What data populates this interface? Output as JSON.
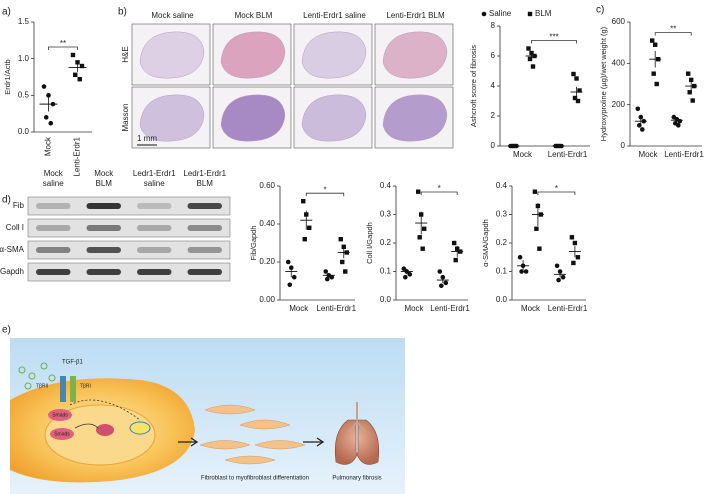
{
  "panel_labels": {
    "a": "a)",
    "b": "b)",
    "c": "c)",
    "d": "d)",
    "e": "e)"
  },
  "histology": {
    "columns": [
      "Mock saline",
      "Mock BLM",
      "Lenti-Erdr1 saline",
      "Lenti-Erdr1 BLM"
    ],
    "rows": [
      "H&E",
      "Masson"
    ],
    "scale_bar": "1 mm"
  },
  "western_blot": {
    "columns": [
      [
        "Mock",
        "saline"
      ],
      [
        "Mock",
        "BLM"
      ],
      [
        "Ledr1-Erdr1",
        "saline"
      ],
      [
        "Ledr1-Erdr1",
        "BLM"
      ]
    ],
    "rows": [
      "Fib",
      "Coll I",
      "α-SMA",
      "Gapdh"
    ]
  },
  "charts": [
    {
      "type": "dot",
      "ylabel": "Erdr1/Actb",
      "categories": [
        "Mock",
        "Lenti-Erdr1"
      ],
      "ylim": [
        0,
        1.5
      ],
      "yticks": [
        {
          "value": 0,
          "label": "0.0"
        },
        {
          "value": 0.5,
          "label": "0.5"
        },
        {
          "value": 1,
          "label": "1.0"
        },
        {
          "value": 1.5,
          "label": "1.5"
        }
      ],
      "groups": [
        {
          "marker": "circle",
          "values": [
            0.62,
            0.5,
            0.38,
            0.2,
            0.12
          ],
          "mean": 0.38,
          "sem": 0.1
        },
        {
          "marker": "square",
          "values": [
            1.05,
            0.95,
            0.9,
            0.78,
            0.72
          ],
          "mean": 0.88,
          "sem": 0.06
        }
      ],
      "significance": "**"
    },
    {
      "type": "dot",
      "ylabel": "Ashcroft score of fibrosis",
      "categories": [
        "Mock",
        "Lenti-Erdr1"
      ],
      "ylim": [
        0,
        8
      ],
      "yticks": [
        0,
        2,
        4,
        6,
        8
      ],
      "legend": [
        {
          "name": "Saline",
          "marker": "circle"
        },
        {
          "name": "BLM",
          "marker": "square"
        }
      ],
      "groups": [
        {
          "marker": "circle",
          "values": [
            0,
            0,
            0,
            0,
            0
          ],
          "mean": 0,
          "sem": 0
        },
        {
          "marker": "square",
          "values": [
            6.5,
            6.2,
            6.0,
            5.8,
            5.3
          ],
          "mean": 6,
          "sem": 0.2
        },
        {
          "marker": "circle",
          "values": [
            0,
            0,
            0,
            0,
            0
          ],
          "mean": 0,
          "sem": 0
        },
        {
          "marker": "square",
          "values": [
            4.8,
            4.5,
            3.7,
            3.2,
            3.0
          ],
          "mean": 3.6,
          "sem": 0.35
        }
      ],
      "significance": "***"
    },
    {
      "type": "dot",
      "ylabel": "Hydroxyproline (µg)/wet weight (g)",
      "categories": [
        "Mock",
        "Lenti-Erdr1"
      ],
      "ylim": [
        0,
        600
      ],
      "yticks": [
        0,
        200,
        400,
        600
      ],
      "groups": [
        {
          "marker": "circle",
          "values": [
            180,
            140,
            120,
            100,
            80
          ],
          "mean": 120,
          "sem": 18
        },
        {
          "marker": "square",
          "values": [
            510,
            490,
            420,
            350,
            300
          ],
          "mean": 420,
          "sem": 40
        },
        {
          "marker": "circle",
          "values": [
            140,
            130,
            120,
            110,
            100
          ],
          "mean": 125,
          "sem": 8
        },
        {
          "marker": "square",
          "values": [
            350,
            320,
            290,
            260,
            220
          ],
          "mean": 290,
          "sem": 22
        }
      ],
      "significance": "**"
    },
    {
      "type": "dot",
      "ylabel": "Fib/Gapdh",
      "categories": [
        "Mock",
        "Lenti-Erdr1"
      ],
      "ylim": [
        0,
        0.6
      ],
      "yticks": [
        {
          "value": 0,
          "label": "0.00"
        },
        {
          "value": 0.2,
          "label": "0.20"
        },
        {
          "value": 0.4,
          "label": "0.40"
        },
        {
          "value": 0.6,
          "label": "0.60"
        }
      ],
      "groups": [
        {
          "marker": "circle",
          "values": [
            0.2,
            0.17,
            0.12,
            0.08
          ],
          "mean": 0.15,
          "sem": 0.03
        },
        {
          "marker": "square",
          "values": [
            0.52,
            0.45,
            0.38,
            0.32
          ],
          "mean": 0.42,
          "sem": 0.05
        },
        {
          "marker": "circle",
          "values": [
            0.15,
            0.13,
            0.12,
            0.11
          ],
          "mean": 0.13,
          "sem": 0.01
        },
        {
          "marker": "square",
          "values": [
            0.32,
            0.28,
            0.25,
            0.2,
            0.15
          ],
          "mean": 0.25,
          "sem": 0.03
        }
      ],
      "significance": "*"
    },
    {
      "type": "dot",
      "ylabel": "Coll I/Gapdh",
      "categories": [
        "Mock",
        "Lenti-Erdr1"
      ],
      "ylim": [
        0,
        0.4
      ],
      "yticks": [
        {
          "value": 0,
          "label": "0.0"
        },
        0.1,
        0.2,
        0.3,
        0.4
      ],
      "groups": [
        {
          "marker": "circle",
          "values": [
            0.11,
            0.1,
            0.09,
            0.08
          ],
          "mean": 0.1,
          "sem": 0.01
        },
        {
          "marker": "square",
          "values": [
            0.38,
            0.3,
            0.25,
            0.22,
            0.18
          ],
          "mean": 0.27,
          "sem": 0.04
        },
        {
          "marker": "circle",
          "values": [
            0.1,
            0.08,
            0.06,
            0.05
          ],
          "mean": 0.07,
          "sem": 0.01
        },
        {
          "marker": "square",
          "values": [
            0.2,
            0.18,
            0.17,
            0.14
          ],
          "mean": 0.17,
          "sem": 0.02
        }
      ],
      "significance": "*"
    },
    {
      "type": "dot",
      "ylabel": "α-SMA/Gapdh",
      "categories": [
        "Mock",
        "Lenti-Erdr1"
      ],
      "ylim": [
        0,
        0.4
      ],
      "yticks": [
        {
          "value": 0,
          "label": "0.0"
        },
        0.1,
        0.2,
        0.3,
        0.4
      ],
      "groups": [
        {
          "marker": "circle",
          "values": [
            0.15,
            0.12,
            0.1,
            0.1
          ],
          "mean": 0.12,
          "sem": 0.02
        },
        {
          "marker": "square",
          "values": [
            0.38,
            0.33,
            0.3,
            0.25,
            0.18
          ],
          "mean": 0.3,
          "sem": 0.04
        },
        {
          "marker": "circle",
          "values": [
            0.12,
            0.1,
            0.08,
            0.07
          ],
          "mean": 0.09,
          "sem": 0.01
        },
        {
          "marker": "square",
          "values": [
            0.22,
            0.2,
            0.15,
            0.13
          ],
          "mean": 0.17,
          "sem": 0.02
        }
      ],
      "significance": "*"
    }
  ],
  "schematic": {
    "labels": [
      "TGF-β1",
      "TβRII",
      "TβRI",
      "Smads",
      "Smads"
    ],
    "steps": [
      "Fibroblast to myofibroblast differentiation",
      "Pulmonary fibrosis"
    ]
  }
}
